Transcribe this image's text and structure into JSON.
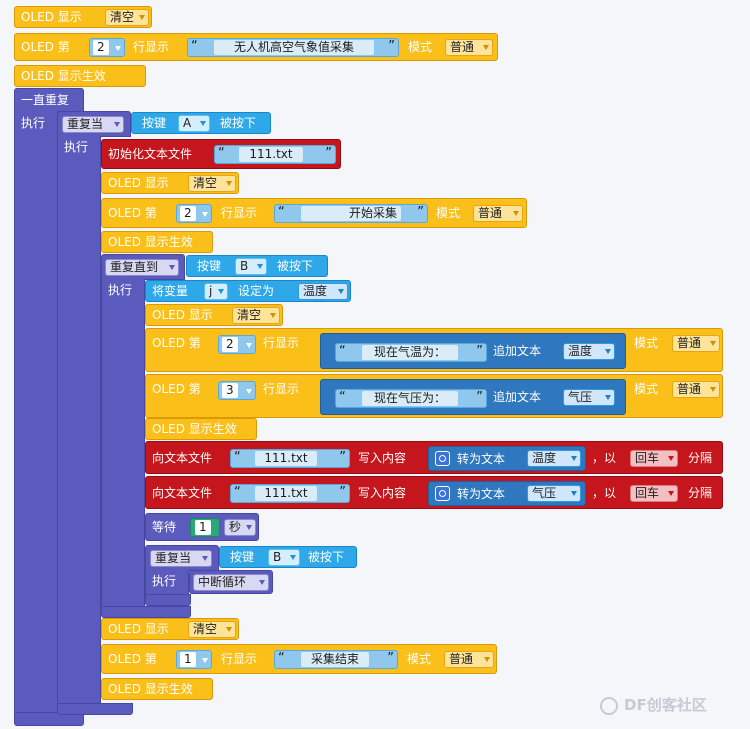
{
  "common": {
    "oled_display": "OLED 显示",
    "clear": "清空",
    "oled_line_prefix": "OLED 第",
    "line_display": "行显示",
    "mode": "模式",
    "normal": "普通",
    "oled_commit": "OLED 显示生效",
    "execute": "执行",
    "key": "按键",
    "pressed": "被按下",
    "quote_open": "“",
    "quote_close": "”",
    "append_text": "追加文本",
    "write_to_file": "向文本文件",
    "write_content": "写入内容",
    "to_text": "转为文本",
    "with_sep": "，以",
    "separate": "分隔",
    "newline": "回车"
  },
  "top": {
    "line_number": "2",
    "line_text": "无人机高空气象值采集"
  },
  "forever": {
    "label": "一直重复"
  },
  "outer_if": {
    "label": "重复当",
    "key": "A"
  },
  "init_file": {
    "label": "初始化文本文件",
    "filename": "111.txt"
  },
  "start_block": {
    "line_number": "2",
    "line_text": "开始采集"
  },
  "repeat_until": {
    "label": "重复直到",
    "key": "B"
  },
  "set_var": {
    "label": "将变量",
    "var": "j",
    "set_to": "设定为",
    "value": "温度"
  },
  "line_temp": {
    "line_number": "2",
    "text": "现在气温为：",
    "var": "温度"
  },
  "line_press": {
    "line_number": "3",
    "text": "现在气压为：",
    "var": "气压"
  },
  "write_temp": {
    "filename": "111.txt",
    "var": "温度"
  },
  "write_press": {
    "filename": "111.txt",
    "var": "气压"
  },
  "wait": {
    "label": "等待",
    "value": "1",
    "unit": "秒"
  },
  "inner_if": {
    "label": "重复当",
    "key": "B",
    "break_label": "中断循环"
  },
  "end_block": {
    "line_number": "1",
    "line_text": "采集结束"
  },
  "watermark": "DF创客社区"
}
